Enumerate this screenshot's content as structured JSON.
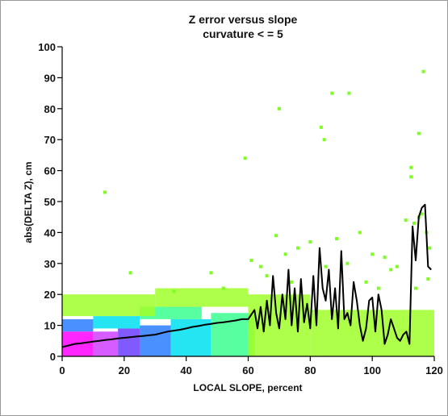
{
  "chart_data": {
    "type": "heatmap",
    "title": [
      "Z error versus slope",
      "curvature < = 5"
    ],
    "xlabel": "LOCAL SLOPE, percent",
    "ylabel": "abs(DELTA Z), cm",
    "xlim": [
      0,
      120
    ],
    "ylim": [
      0,
      100
    ],
    "x_ticks": [
      0,
      20,
      40,
      60,
      80,
      100,
      120
    ],
    "y_ticks": [
      0,
      10,
      20,
      30,
      40,
      50,
      60,
      70,
      80,
      90,
      100
    ],
    "grid": false,
    "legend": "none",
    "density_colors": [
      "#ff00ff",
      "#d040ff",
      "#6a3cff",
      "#2a7cff",
      "#00e0f0",
      "#3aff90",
      "#a0ff2a"
    ],
    "density_bands": [
      {
        "x": [
          0,
          10
        ],
        "y": [
          0,
          8
        ],
        "level": 0
      },
      {
        "x": [
          10,
          18
        ],
        "y": [
          0,
          8
        ],
        "level": 1
      },
      {
        "x": [
          18,
          25
        ],
        "y": [
          0,
          9
        ],
        "level": 2
      },
      {
        "x": [
          25,
          35
        ],
        "y": [
          0,
          10
        ],
        "level": 3
      },
      {
        "x": [
          35,
          48
        ],
        "y": [
          0,
          12
        ],
        "level": 4
      },
      {
        "x": [
          48,
          62
        ],
        "y": [
          0,
          14
        ],
        "level": 5
      },
      {
        "x": [
          0,
          10
        ],
        "y": [
          8,
          12
        ],
        "level": 3
      },
      {
        "x": [
          10,
          25
        ],
        "y": [
          9,
          13
        ],
        "level": 4
      },
      {
        "x": [
          25,
          45
        ],
        "y": [
          12,
          16
        ],
        "level": 5
      },
      {
        "x": [
          0,
          30
        ],
        "y": [
          13,
          20
        ],
        "level": 6
      },
      {
        "x": [
          30,
          60
        ],
        "y": [
          16,
          22
        ],
        "level": 6
      },
      {
        "x": [
          60,
          80
        ],
        "y": [
          0,
          20
        ],
        "level": 6
      },
      {
        "x": [
          80,
          120
        ],
        "y": [
          0,
          15
        ],
        "level": 6
      }
    ],
    "outliers": [
      [
        13.8,
        53
      ],
      [
        59,
        64
      ],
      [
        70,
        80
      ],
      [
        83.5,
        74
      ],
      [
        84.5,
        70
      ],
      [
        87,
        85
      ],
      [
        92.5,
        85
      ],
      [
        116.5,
        92
      ],
      [
        115,
        72
      ],
      [
        112.5,
        61
      ],
      [
        112.5,
        58
      ],
      [
        110.8,
        44
      ],
      [
        113.5,
        43
      ],
      [
        115,
        45
      ],
      [
        116,
        46
      ],
      [
        118.5,
        35
      ],
      [
        117.5,
        40
      ],
      [
        96,
        40
      ],
      [
        88.5,
        38
      ],
      [
        80,
        37
      ],
      [
        76,
        35
      ],
      [
        72,
        33
      ],
      [
        69,
        39
      ],
      [
        64,
        29
      ],
      [
        61,
        31
      ],
      [
        100,
        33
      ],
      [
        104,
        32
      ],
      [
        108,
        29
      ],
      [
        118,
        25
      ],
      [
        114,
        22
      ],
      [
        106,
        28
      ],
      [
        92,
        30
      ],
      [
        85,
        29
      ],
      [
        66,
        26
      ],
      [
        48,
        27
      ],
      [
        36,
        21
      ],
      [
        22,
        27
      ],
      [
        52,
        22
      ],
      [
        74,
        24
      ],
      [
        98,
        24
      ],
      [
        102,
        22
      ]
    ],
    "series": [
      {
        "type": "line",
        "x": [
          0,
          2,
          4,
          6,
          8,
          10,
          12,
          14,
          16,
          18,
          20,
          22,
          24,
          26,
          28,
          30,
          32,
          34,
          36,
          38,
          40,
          42,
          44,
          46,
          48,
          50,
          52,
          54,
          56,
          58,
          60,
          62,
          63,
          64,
          65,
          66,
          67,
          68,
          69,
          70,
          71,
          72,
          73,
          74,
          75,
          76,
          77,
          78,
          79,
          80,
          81,
          82,
          83,
          84,
          85,
          86,
          87,
          88,
          89,
          90,
          91,
          92,
          93,
          94,
          95,
          96,
          97,
          98,
          99,
          100,
          101,
          102,
          103,
          104,
          105,
          106,
          107,
          108,
          109,
          110,
          111,
          112,
          113,
          114,
          115,
          116,
          117,
          118,
          119
        ],
        "y": [
          3,
          3.5,
          4,
          4.2,
          4.5,
          4.8,
          5,
          5.3,
          5.5,
          5.8,
          6,
          6.2,
          6.4,
          6.6,
          6.8,
          7,
          7.5,
          8,
          8.3,
          8.6,
          9,
          9.5,
          9.8,
          10.2,
          10.5,
          10.8,
          11,
          11.3,
          11.6,
          12,
          12,
          15,
          9,
          16,
          8,
          18,
          10,
          26,
          14,
          9,
          20,
          12,
          28,
          10,
          22,
          8,
          25,
          11,
          17,
          9,
          26,
          10,
          35,
          22,
          18,
          28,
          12,
          22,
          9,
          34,
          12,
          14,
          10,
          24,
          18,
          10,
          5,
          9,
          18,
          19,
          8,
          20,
          15,
          4,
          7,
          12,
          9,
          6,
          5,
          7,
          8,
          4,
          42,
          31,
          45,
          48,
          49,
          29,
          28
        ]
      }
    ]
  }
}
